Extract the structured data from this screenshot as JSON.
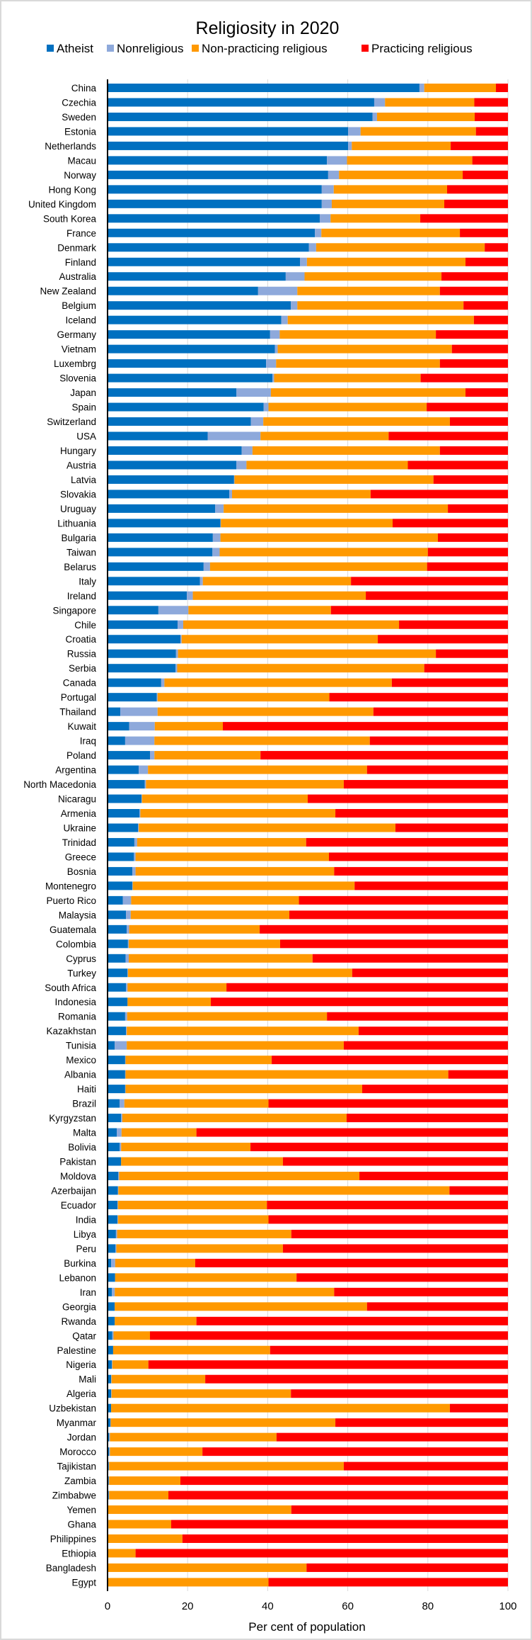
{
  "chart_data": {
    "type": "bar",
    "orientation": "horizontal",
    "stacked": true,
    "title": "Religiosity in 2020",
    "xlabel": "Per cent of population",
    "ylabel": "",
    "xlim": [
      0,
      100
    ],
    "xticks": [
      "0",
      "20",
      "40",
      "60",
      "80",
      "100"
    ],
    "grid": "vertical",
    "legend_position": "top",
    "categories": [
      "China",
      "Czechia",
      "Sweden",
      "Estonia",
      "Netherlands",
      "Macau",
      "Norway",
      "Hong Kong",
      "United Kingdom",
      "South Korea",
      "France",
      "Denmark",
      "Finland",
      "Australia",
      "New Zealand",
      "Belgium",
      "Iceland",
      "Germany",
      "Vietnam",
      "Luxembrg",
      "Slovenia",
      "Japan",
      "Spain",
      "Switzerland",
      "USA",
      "Hungary",
      "Austria",
      "Latvia",
      "Slovakia",
      "Uruguay",
      "Lithuania",
      "Bulgaria",
      "Taiwan",
      "Belarus",
      "Italy",
      "Ireland",
      "Singapore",
      "Chile",
      "Croatia",
      "Russia",
      "Serbia",
      "Canada",
      "Portugal",
      "Thailand",
      "Kuwait",
      "Iraq",
      "Poland",
      "Argentina",
      "North Macedonia",
      "Nicaragu",
      "Armenia",
      "Ukraine",
      "Trinidad",
      "Greece",
      "Bosnia",
      "Montenegro",
      "Puerto Rico",
      "Malaysia",
      "Guatemala",
      "Colombia",
      "Cyprus",
      "Turkey",
      "South Africa",
      "Indonesia",
      "Romania",
      "Kazakhstan",
      "Tunisia",
      "Mexico",
      "Albania",
      "Haiti",
      "Brazil",
      "Kyrgyzstan",
      "Malta",
      "Bolivia",
      "Pakistan",
      "Moldova",
      "Azerbaijan",
      "Ecuador",
      "India",
      "Libya",
      "Peru",
      "Burkina",
      "Lebanon",
      "Iran",
      "Georgia",
      "Rwanda",
      "Qatar",
      "Palestine",
      "Nigeria",
      "Mali",
      "Algeria",
      "Uzbekistan",
      "Myanmar",
      "Jordan",
      "Morocco",
      "Tajikistan",
      "Zambia",
      "Zimbabwe",
      "Yemen",
      "Ghana",
      "Philippines",
      "Ethiopia",
      "Bangladesh",
      "Egypt"
    ],
    "series": [
      {
        "name": "Atheist",
        "color": "#0070C0",
        "values": [
          77.9,
          66.6,
          66.2,
          60.1,
          60.1,
          54.8,
          55.1,
          53.5,
          53.5,
          53.0,
          51.8,
          50.3,
          48.1,
          44.5,
          37.6,
          45.8,
          43.4,
          40.6,
          41.8,
          39.6,
          41.2,
          32.2,
          39.0,
          35.8,
          25.0,
          33.5,
          32.2,
          31.6,
          30.4,
          26.9,
          28.2,
          26.3,
          26.2,
          24.0,
          23.1,
          19.8,
          12.7,
          17.5,
          18.2,
          17.1,
          17.0,
          13.4,
          12.3,
          3.2,
          5.4,
          4.4,
          10.6,
          7.8,
          9.3,
          8.5,
          8.0,
          7.6,
          6.7,
          6.6,
          6.2,
          6.2,
          3.8,
          4.6,
          4.8,
          5.1,
          4.5,
          5.0,
          4.6,
          5.0,
          4.4,
          4.6,
          1.8,
          4.4,
          4.4,
          4.4,
          3.0,
          3.4,
          2.3,
          3.0,
          3.4,
          2.7,
          2.6,
          2.5,
          2.5,
          2.1,
          2.0,
          0.9,
          1.9,
          1.1,
          1.8,
          1.8,
          1.2,
          1.4,
          1.1,
          0.9,
          0.9,
          0.9,
          0.7,
          0.4,
          0.4,
          0.3,
          0.3,
          0.3,
          0,
          0.1,
          0,
          0,
          0,
          0
        ]
      },
      {
        "name": "Nonreligious",
        "color": "#8EA9DB",
        "values": [
          1.2,
          2.7,
          1.1,
          3.1,
          0.9,
          5.0,
          2.7,
          3.0,
          2.5,
          2.7,
          1.6,
          1.8,
          1.7,
          4.7,
          9.8,
          1.6,
          1.6,
          2.4,
          0.7,
          2.5,
          0.4,
          8.6,
          1.2,
          3.1,
          13.2,
          2.7,
          2.5,
          0.1,
          0.7,
          2.1,
          0.1,
          1.9,
          1.8,
          1.6,
          0.7,
          1.5,
          7.5,
          1.4,
          0.3,
          0.5,
          0.4,
          0.8,
          0.2,
          9.3,
          6.4,
          7.3,
          1.1,
          2.3,
          0.3,
          0.1,
          0.2,
          0.2,
          0.7,
          0.4,
          0.8,
          0.1,
          2.1,
          1.2,
          0.6,
          0.2,
          0.8,
          0.1,
          0.4,
          0.0,
          0.5,
          0.2,
          3.0,
          0.1,
          0.1,
          0.1,
          1.2,
          0.3,
          1.2,
          0.4,
          0.0,
          0.2,
          0.1,
          0.1,
          0.1,
          0.3,
          0.2,
          1.0,
          0.0,
          0.7,
          0.0,
          0.0,
          0.3,
          0.0,
          0.1,
          0.1,
          0.1,
          0.0,
          0.1,
          0.2,
          0.2,
          0.1,
          0.1,
          0.1,
          0,
          0.1,
          0,
          0,
          0,
          0
        ]
      },
      {
        "name": "Non-practicing religious",
        "color": "#FF9900",
        "values": [
          17.9,
          22.3,
          24.4,
          28.8,
          24.7,
          31.3,
          30.9,
          28.3,
          28.1,
          22.4,
          34.6,
          42.1,
          39.6,
          34.2,
          35.6,
          41.5,
          46.5,
          39.0,
          43.5,
          40.9,
          36.6,
          48.6,
          39.5,
          46.6,
          32.0,
          46.8,
          40.3,
          49.7,
          34.6,
          56.0,
          42.9,
          54.3,
          52.0,
          54.2,
          37.0,
          43.2,
          35.6,
          53.9,
          49.0,
          64.4,
          61.7,
          56.8,
          42.9,
          53.9,
          17.0,
          53.8,
          26.5,
          54.7,
          49.4,
          41.4,
          48.7,
          64.1,
          42.2,
          48.3,
          49.6,
          55.4,
          41.9,
          39.6,
          32.6,
          37.8,
          45.9,
          56.0,
          24.7,
          20.8,
          49.9,
          57.9,
          54.2,
          36.5,
          80.6,
          59.1,
          36.0,
          56.0,
          18.7,
          32.3,
          40.4,
          60.0,
          82.7,
          37.2,
          37.6,
          43.5,
          41.6,
          20.0,
          45.3,
          54.8,
          63.0,
          20.4,
          9.1,
          39.2,
          9.0,
          23.4,
          44.8,
          84.6,
          56.1,
          41.6,
          23.1,
          58.6,
          17.8,
          14.8,
          45.9,
          15.7,
          18.7,
          7.0,
          49.7,
          40.2
        ]
      },
      {
        "name": "Practicing religious",
        "color": "#FF0000",
        "values": [
          3.0,
          8.4,
          8.3,
          8.0,
          14.3,
          8.9,
          11.3,
          15.2,
          15.9,
          21.9,
          12.0,
          5.8,
          10.6,
          16.6,
          17.0,
          11.1,
          8.5,
          18.0,
          14.0,
          17.0,
          21.8,
          10.6,
          20.3,
          14.5,
          29.8,
          17.0,
          25.0,
          18.6,
          34.3,
          15.0,
          28.8,
          17.5,
          20.0,
          20.2,
          39.2,
          35.5,
          44.2,
          27.2,
          32.5,
          18.0,
          20.9,
          29.0,
          44.6,
          33.6,
          71.2,
          34.5,
          61.8,
          35.2,
          41.0,
          50.0,
          43.1,
          28.1,
          50.4,
          44.7,
          43.4,
          38.3,
          52.2,
          54.6,
          62.0,
          56.9,
          48.8,
          38.9,
          70.3,
          74.2,
          45.2,
          37.3,
          41.0,
          59.0,
          14.9,
          36.4,
          59.8,
          40.3,
          77.8,
          64.3,
          56.2,
          37.1,
          14.6,
          60.2,
          59.8,
          54.1,
          56.2,
          78.1,
          52.8,
          43.4,
          35.2,
          77.8,
          89.4,
          59.4,
          89.8,
          75.6,
          54.2,
          14.5,
          43.1,
          57.8,
          76.3,
          41.0,
          81.8,
          84.8,
          54.1,
          84.1,
          81.3,
          93.0,
          50.3,
          59.8
        ]
      }
    ]
  }
}
